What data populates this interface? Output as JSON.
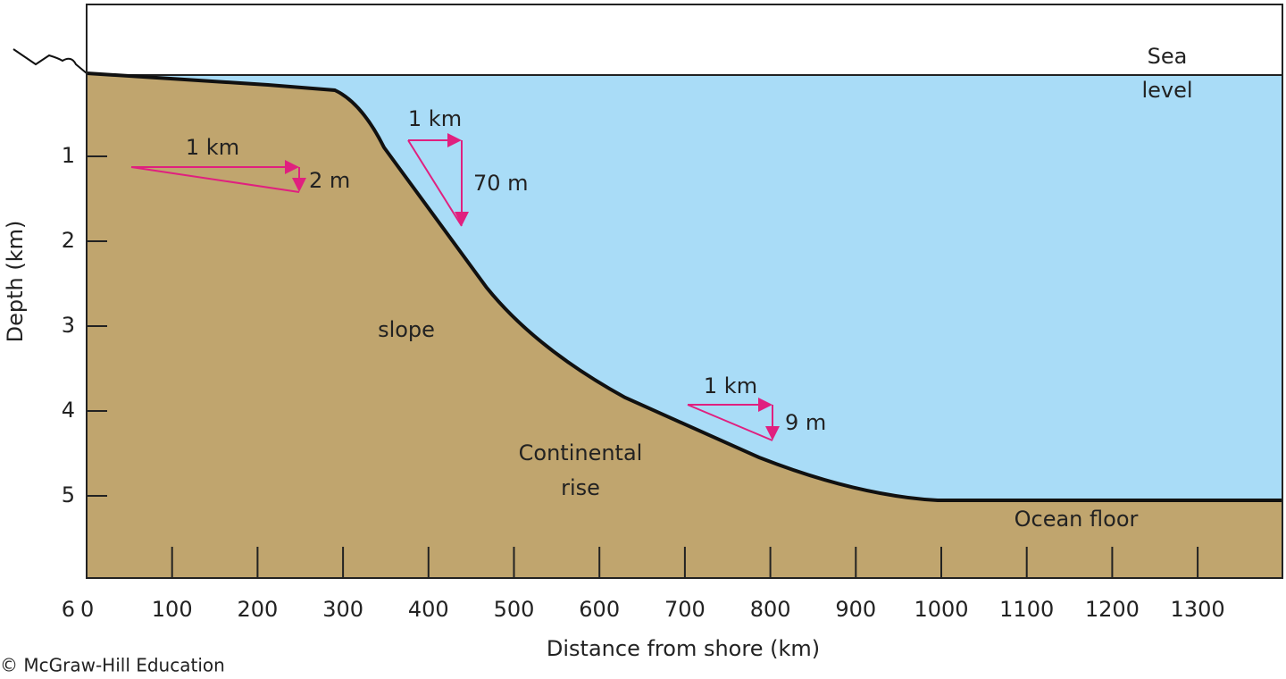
{
  "labels": {
    "sea_level": [
      "Sea",
      "level"
    ],
    "slope": "slope",
    "continental_rise": [
      "Continental",
      "rise"
    ],
    "ocean_floor": "Ocean floor"
  },
  "gradients": [
    {
      "run": "1 km",
      "drop": "2 m"
    },
    {
      "run": "1 km",
      "drop": "70 m"
    },
    {
      "run": "1 km",
      "drop": "9 m"
    }
  ],
  "axes": {
    "y_title": "Depth (km)",
    "y_ticks": [
      "1",
      "2",
      "3",
      "4",
      "5",
      "6"
    ],
    "x_title": "Distance from shore (km)",
    "x_ticks": [
      "0",
      "100",
      "200",
      "300",
      "400",
      "500",
      "600",
      "700",
      "800",
      "900",
      "1000",
      "1100",
      "1200",
      "1300"
    ]
  },
  "credit": "© McGraw-Hill Education"
}
